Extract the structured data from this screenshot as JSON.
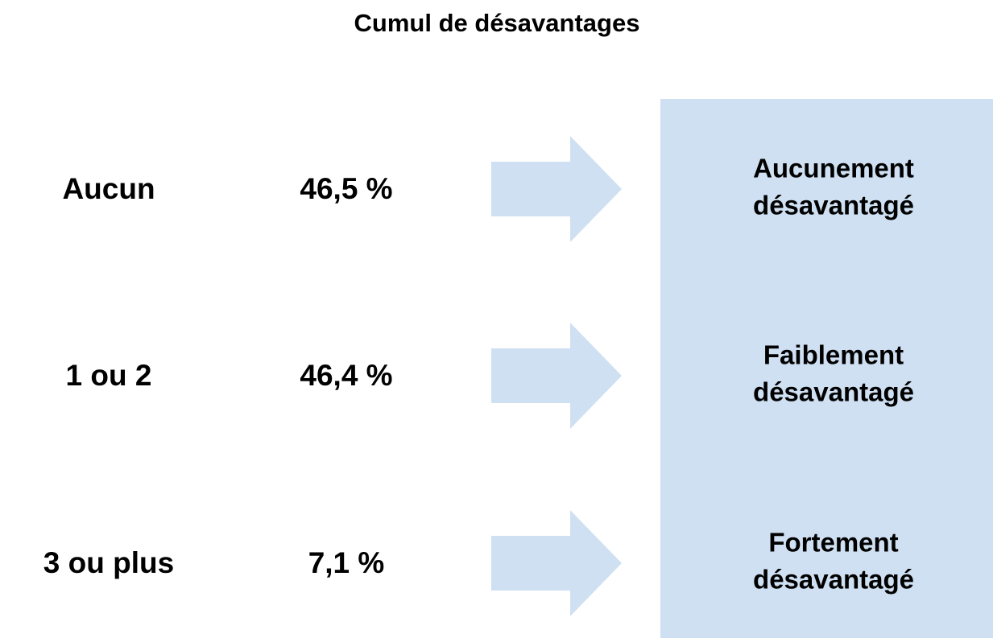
{
  "title": "Cumul de désavantages",
  "rows": [
    {
      "label": "Aucun",
      "share": "46,5 %",
      "result": [
        "Aucunement",
        "désavantagé"
      ]
    },
    {
      "label": "1 ou 2",
      "share": "46,4 %",
      "result": [
        "Faiblement",
        "désavantagé"
      ]
    },
    {
      "label": "3 ou plus",
      "share": "7,1 %",
      "result": [
        "Fortement",
        "désavantagé"
      ]
    }
  ]
}
